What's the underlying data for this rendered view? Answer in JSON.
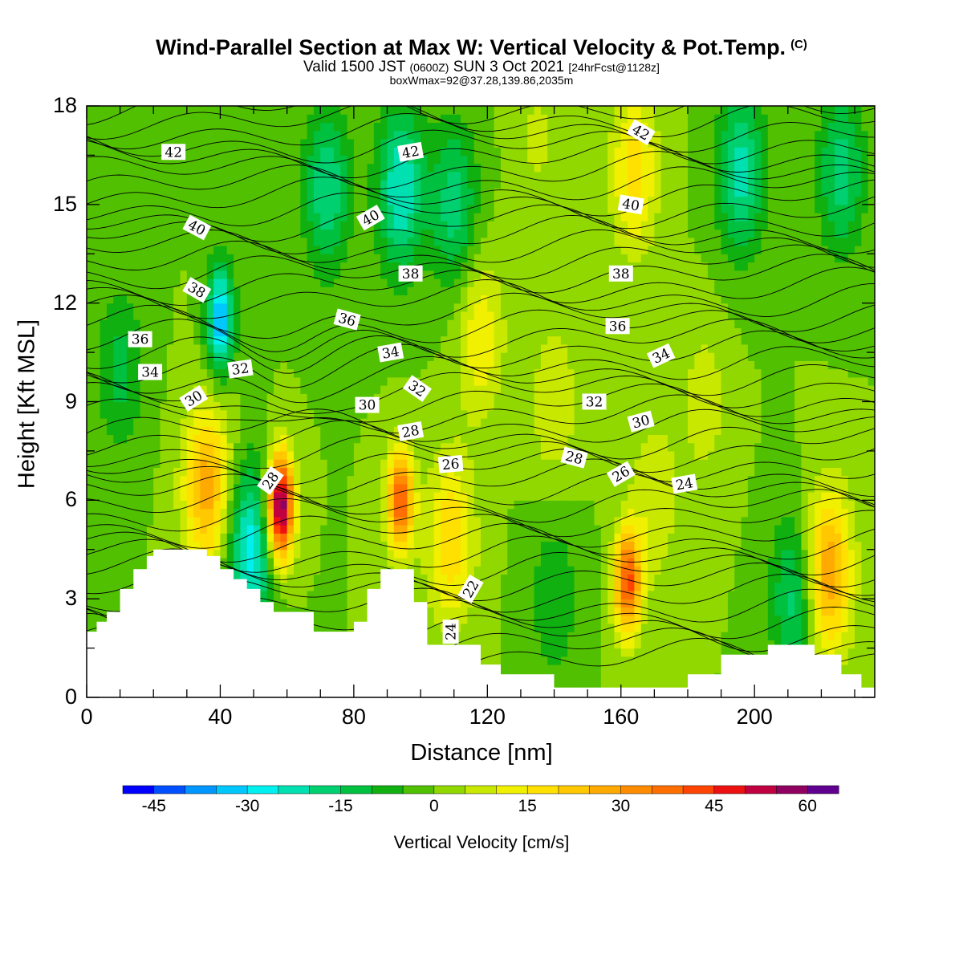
{
  "title": "Wind-Parallel Section at Max W: Vertical Velocity & Pot.Temp.",
  "copyright_mark": "(C)",
  "subtitle_main": "Valid 1500 JST",
  "subtitle_utc": "(0600Z)",
  "subtitle_date": "SUN 3 Oct 2021",
  "subtitle_fcst": "[24hrFcst@1128z]",
  "subtitle3": "boxWmax=92@37.28,139.86,2035m",
  "chart_data": {
    "type": "heatmap",
    "xlabel": "Distance [nm]",
    "ylabel": "Height [Kft MSL]",
    "xlim": [
      0,
      236
    ],
    "ylim": [
      0,
      18
    ],
    "x_ticks": [
      "0",
      "40",
      "80",
      "120",
      "160",
      "200"
    ],
    "y_ticks": [
      "0",
      "3",
      "6",
      "9",
      "12",
      "15",
      "18"
    ],
    "colorbar": {
      "label": "Vertical Velocity [cm/s]",
      "min": -50,
      "max": 65,
      "step": 5,
      "tick_labels": [
        "-45",
        "-30",
        "-15",
        "0",
        "15",
        "30",
        "45",
        "60"
      ],
      "colors": [
        "#0000ff",
        "#0050ff",
        "#0096ff",
        "#00c8ff",
        "#00f0f0",
        "#00e0b0",
        "#00d070",
        "#00c040",
        "#10b010",
        "#50c000",
        "#90d800",
        "#c8e800",
        "#f0f000",
        "#ffe000",
        "#ffc800",
        "#ffaa00",
        "#ff8c00",
        "#ff6e00",
        "#ff4400",
        "#ee1111",
        "#c00040",
        "#900060",
        "#600090"
      ]
    },
    "terrain_kft": [
      [
        0,
        2.0
      ],
      [
        3,
        2.3
      ],
      [
        6,
        2.6
      ],
      [
        10,
        3.3
      ],
      [
        14,
        3.9
      ],
      [
        18,
        4.3
      ],
      [
        20,
        4.5
      ],
      [
        32,
        4.5
      ],
      [
        36,
        4.3
      ],
      [
        40,
        3.9
      ],
      [
        44,
        3.6
      ],
      [
        48,
        3.3
      ],
      [
        52,
        2.9
      ],
      [
        56,
        2.6
      ],
      [
        66,
        2.6
      ],
      [
        68,
        2.0
      ],
      [
        76,
        2.0
      ],
      [
        80,
        2.3
      ],
      [
        84,
        3.3
      ],
      [
        88,
        3.9
      ],
      [
        94,
        3.9
      ],
      [
        98,
        2.9
      ],
      [
        102,
        1.6
      ],
      [
        110,
        1.6
      ],
      [
        118,
        1.0
      ],
      [
        124,
        0.7
      ],
      [
        136,
        0.7
      ],
      [
        140,
        0.3
      ],
      [
        170,
        0.3
      ],
      [
        180,
        0.7
      ],
      [
        190,
        1.3
      ],
      [
        200,
        1.3
      ],
      [
        204,
        1.6
      ],
      [
        212,
        1.6
      ],
      [
        218,
        1.3
      ],
      [
        226,
        0.7
      ],
      [
        232,
        0.3
      ],
      [
        236,
        0.3
      ]
    ],
    "w_field_cm_s": [
      {
        "x": 36,
        "z": 6.4,
        "w": 28
      },
      {
        "x": 58,
        "z": 5.8,
        "w": 62
      },
      {
        "x": 94,
        "z": 6.0,
        "w": 40
      },
      {
        "x": 109,
        "z": 4.8,
        "w": 20
      },
      {
        "x": 162,
        "z": 3.5,
        "w": 42
      },
      {
        "x": 222,
        "z": 3.8,
        "w": 30
      },
      {
        "x": 40,
        "z": 11.5,
        "w": -35
      },
      {
        "x": 49,
        "z": 4.5,
        "w": -28
      },
      {
        "x": 94,
        "z": 15.5,
        "w": -25
      },
      {
        "x": 72,
        "z": 15.5,
        "w": -20
      },
      {
        "x": 110,
        "z": 15.0,
        "w": -18
      },
      {
        "x": 196,
        "z": 16.0,
        "w": -22
      },
      {
        "x": 226,
        "z": 16.0,
        "w": -18
      },
      {
        "x": 212,
        "z": 3.0,
        "w": -18
      },
      {
        "x": 140,
        "z": 3.0,
        "w": -10
      },
      {
        "x": 164,
        "z": 16.0,
        "w": 18
      },
      {
        "x": 118,
        "z": 11.0,
        "w": 14
      },
      {
        "x": 140,
        "z": 9.0,
        "w": 10
      },
      {
        "x": 170,
        "z": 6.0,
        "w": 10
      },
      {
        "x": 185,
        "z": 9.0,
        "w": 8
      },
      {
        "x": 10,
        "z": 10.0,
        "w": -12
      },
      {
        "x": 135,
        "z": 17.0,
        "w": 6
      }
    ],
    "theta_contour_labels": [
      {
        "label": "42",
        "x": 26,
        "z": 16.6,
        "rot": 0
      },
      {
        "label": "42",
        "x": 97,
        "z": 16.6,
        "rot": -10
      },
      {
        "label": "42",
        "x": 166,
        "z": 17.2,
        "rot": 30
      },
      {
        "label": "40",
        "x": 33,
        "z": 14.3,
        "rot": 28
      },
      {
        "label": "40",
        "x": 85,
        "z": 14.6,
        "rot": -30
      },
      {
        "label": "40",
        "x": 163,
        "z": 15.0,
        "rot": 10
      },
      {
        "label": "38",
        "x": 33,
        "z": 12.4,
        "rot": 30
      },
      {
        "label": "38",
        "x": 97,
        "z": 12.9,
        "rot": 0
      },
      {
        "label": "38",
        "x": 160,
        "z": 12.9,
        "rot": 0
      },
      {
        "label": "36",
        "x": 16,
        "z": 10.9,
        "rot": 0
      },
      {
        "label": "36",
        "x": 78,
        "z": 11.5,
        "rot": 15
      },
      {
        "label": "36",
        "x": 159,
        "z": 11.3,
        "rot": 0
      },
      {
        "label": "34",
        "x": 19,
        "z": 9.9,
        "rot": 0
      },
      {
        "label": "34",
        "x": 91,
        "z": 10.5,
        "rot": -10
      },
      {
        "label": "34",
        "x": 172,
        "z": 10.4,
        "rot": -25
      },
      {
        "label": "32",
        "x": 46,
        "z": 10.0,
        "rot": -8
      },
      {
        "label": "32",
        "x": 99,
        "z": 9.4,
        "rot": 35
      },
      {
        "label": "32",
        "x": 152,
        "z": 9.0,
        "rot": 0
      },
      {
        "label": "30",
        "x": 32,
        "z": 9.1,
        "rot": -32
      },
      {
        "label": "30",
        "x": 84,
        "z": 8.9,
        "rot": 0
      },
      {
        "label": "30",
        "x": 166,
        "z": 8.4,
        "rot": -15
      },
      {
        "label": "28",
        "x": 55,
        "z": 6.6,
        "rot": -55
      },
      {
        "label": "28",
        "x": 97,
        "z": 8.1,
        "rot": -10
      },
      {
        "label": "28",
        "x": 146,
        "z": 7.3,
        "rot": 15
      },
      {
        "label": "26",
        "x": 109,
        "z": 7.1,
        "rot": -5
      },
      {
        "label": "26",
        "x": 160,
        "z": 6.8,
        "rot": -30
      },
      {
        "label": "24",
        "x": 179,
        "z": 6.5,
        "rot": -10
      },
      {
        "label": "24",
        "x": 109,
        "z": 2.0,
        "rot": -90
      },
      {
        "label": "22",
        "x": 115,
        "z": 3.3,
        "rot": -60
      }
    ]
  }
}
